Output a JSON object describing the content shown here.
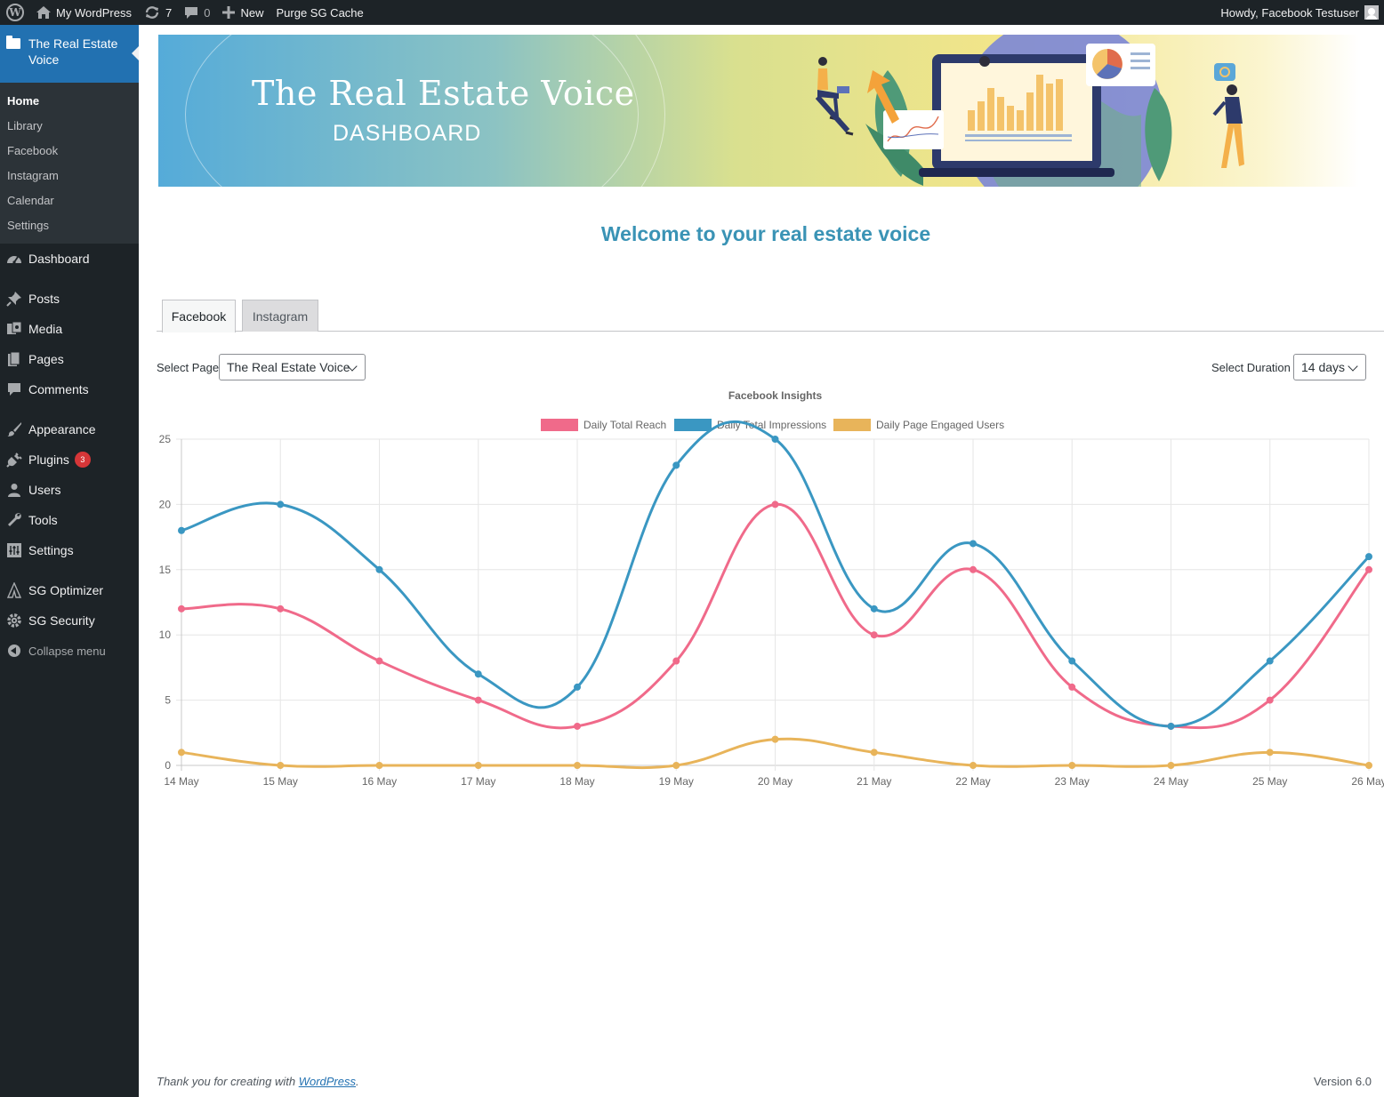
{
  "adminbar": {
    "site_name": "My WordPress",
    "updates_count": "7",
    "comments_count": "0",
    "new_label": "New",
    "purge_label": "Purge SG Cache",
    "howdy": "Howdy, Facebook Testuser"
  },
  "sidebar": {
    "current_plugin": "The Real Estate Voice",
    "submenu": [
      "Home",
      "Library",
      "Facebook",
      "Instagram",
      "Calendar",
      "Settings"
    ],
    "items": {
      "dashboard": "Dashboard",
      "posts": "Posts",
      "media": "Media",
      "pages": "Pages",
      "comments": "Comments",
      "appearance": "Appearance",
      "plugins": "Plugins",
      "plugins_badge": "3",
      "users": "Users",
      "tools": "Tools",
      "settings": "Settings",
      "sg_optimizer": "SG Optimizer",
      "sg_security": "SG Security",
      "collapse": "Collapse menu"
    }
  },
  "banner": {
    "title": "The Real Estate Voice",
    "subtitle": "DASHBOARD"
  },
  "welcome": "Welcome to your real estate voice",
  "tabs": [
    "Facebook",
    "Instagram"
  ],
  "filters": {
    "page_label": "Select Page",
    "page_value": "The Real Estate Voice",
    "duration_label": "Select Duration",
    "duration_value": "14 days"
  },
  "chart_data": {
    "type": "line",
    "title": "Facebook Insights",
    "categories": [
      "14 May",
      "15 May",
      "16 May",
      "17 May",
      "18 May",
      "19 May",
      "20 May",
      "21 May",
      "22 May",
      "23 May",
      "24 May",
      "25 May",
      "26 May"
    ],
    "ylim": [
      0,
      25
    ],
    "yticks": [
      0,
      5,
      10,
      15,
      20,
      25
    ],
    "grid": true,
    "legend": "top-center",
    "series": [
      {
        "name": "Daily Total Reach",
        "color": "#f06a8a",
        "values": [
          12,
          12,
          8,
          5,
          3,
          8,
          20,
          10,
          15,
          6,
          3,
          5,
          15
        ]
      },
      {
        "name": "Daily Total Impressions",
        "color": "#3a97c2",
        "values": [
          18,
          20,
          15,
          7,
          6,
          23,
          25,
          12,
          17,
          8,
          3,
          8,
          16
        ]
      },
      {
        "name": "Daily Page Engaged Users",
        "color": "#e8b45a",
        "values": [
          1,
          0,
          0,
          0,
          0,
          0,
          2,
          1,
          0,
          0,
          0,
          1,
          0
        ]
      }
    ]
  },
  "footer": {
    "thanks_prefix": "Thank you for creating with ",
    "thanks_link": "WordPress",
    "thanks_suffix": ".",
    "version": "Version 6.0"
  }
}
